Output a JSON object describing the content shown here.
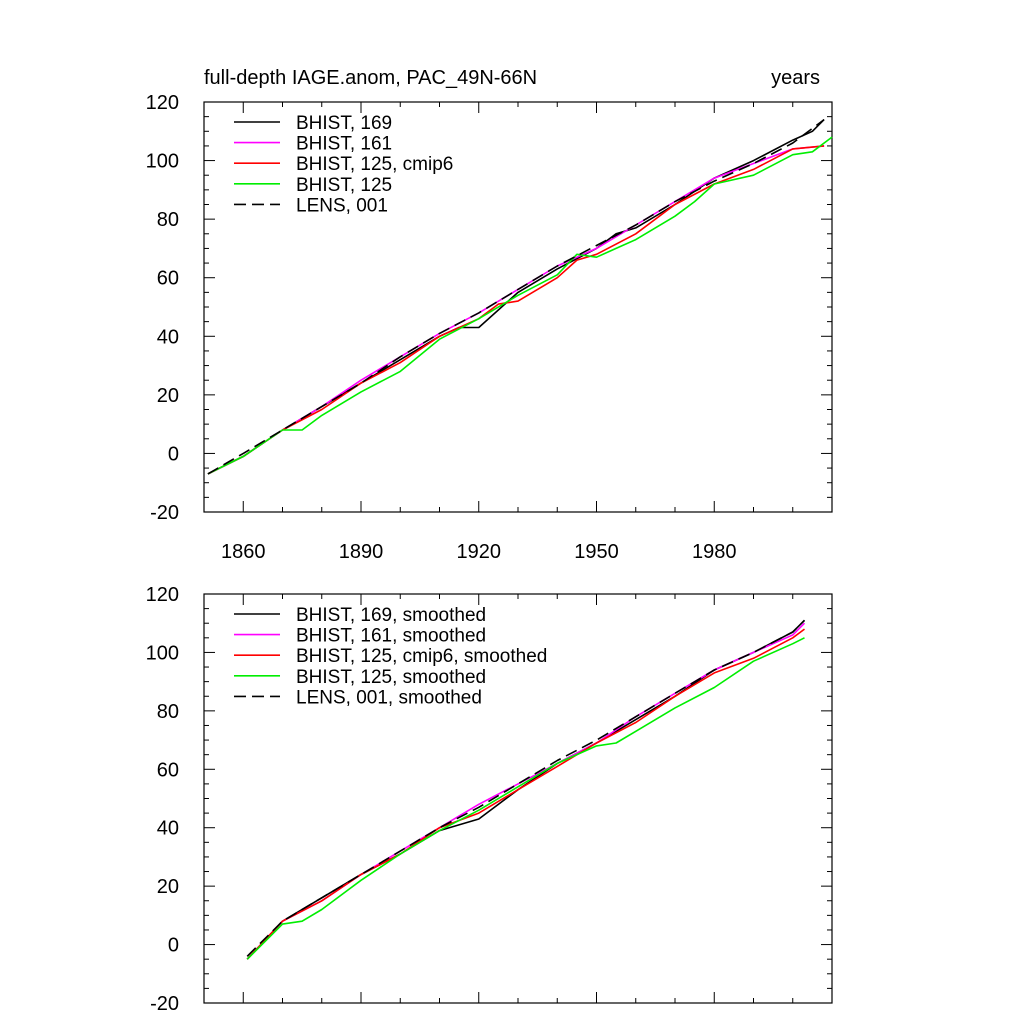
{
  "title_left": "full-depth IAGE.anom, PAC_49N-66N",
  "title_right": "years",
  "chart_data": [
    {
      "type": "line",
      "panel": "top",
      "xlim": [
        1850,
        2010
      ],
      "ylim": [
        -20,
        120
      ],
      "xticks": [
        1860,
        1890,
        1920,
        1950,
        1980
      ],
      "yticks": [
        -20,
        0,
        20,
        40,
        60,
        80,
        100,
        120
      ],
      "xlabel": "",
      "ylabel": "",
      "legend_position": "top-left",
      "series": [
        {
          "name": "BHIST, 169",
          "color": "#000000",
          "dash": "solid",
          "smoothed": false,
          "x": [
            1851,
            1860,
            1870,
            1880,
            1890,
            1900,
            1910,
            1915,
            1920,
            1930,
            1940,
            1950,
            1955,
            1960,
            1970,
            1980,
            1990,
            2000,
            2005,
            2008
          ],
          "y": [
            -7,
            -1,
            8,
            16,
            24,
            32,
            40,
            43,
            43,
            55,
            63,
            70,
            75,
            77,
            85,
            94,
            100,
            107,
            110,
            114
          ]
        },
        {
          "name": "BHIST, 161",
          "color": "#ff00ff",
          "dash": "solid",
          "smoothed": false,
          "x": [
            1851,
            1860,
            1870,
            1880,
            1890,
            1900,
            1910,
            1920,
            1930,
            1940,
            1950,
            1960,
            1970,
            1980,
            1990,
            2000,
            2008
          ],
          "y": [
            -7,
            -1,
            8,
            16,
            25,
            33,
            41,
            48,
            56,
            64,
            70,
            78,
            86,
            94,
            99,
            104,
            105
          ]
        },
        {
          "name": "BHIST, 125, cmip6",
          "color": "#ff0000",
          "dash": "solid",
          "smoothed": false,
          "x": [
            1851,
            1860,
            1870,
            1880,
            1890,
            1900,
            1910,
            1920,
            1925,
            1930,
            1940,
            1945,
            1950,
            1960,
            1970,
            1980,
            1990,
            2000,
            2008
          ],
          "y": [
            -7,
            -1,
            8,
            15,
            24,
            31,
            40,
            46,
            51,
            52,
            60,
            66,
            68,
            75,
            85,
            92,
            97,
            104,
            105
          ]
        },
        {
          "name": "BHIST, 125",
          "color": "#00ee00",
          "dash": "solid",
          "smoothed": false,
          "x": [
            1851,
            1860,
            1870,
            1875,
            1880,
            1890,
            1900,
            1910,
            1920,
            1930,
            1940,
            1945,
            1950,
            1955,
            1960,
            1970,
            1975,
            1980,
            1990,
            2000,
            2005,
            2010
          ],
          "y": [
            -7,
            -1,
            8,
            8,
            13,
            21,
            28,
            39,
            46,
            54,
            61,
            68,
            67,
            70,
            73,
            81,
            86,
            92,
            95,
            102,
            103,
            108
          ]
        },
        {
          "name": "LENS, 001",
          "color": "#000000",
          "dash": "dashed",
          "smoothed": false,
          "x": [
            1851,
            1860,
            1870,
            1880,
            1890,
            1900,
            1910,
            1920,
            1930,
            1940,
            1950,
            1960,
            1970,
            1980,
            1990,
            2000,
            2008
          ],
          "y": [
            -7,
            0,
            8,
            16,
            24,
            33,
            41,
            48,
            56,
            64,
            71,
            78,
            86,
            93,
            99,
            106,
            114
          ]
        }
      ]
    },
    {
      "type": "line",
      "panel": "bottom",
      "xlim": [
        1850,
        2010
      ],
      "ylim": [
        -20,
        120
      ],
      "xticks": [
        1860,
        1890,
        1920,
        1950,
        1980
      ],
      "yticks": [
        -20,
        0,
        20,
        40,
        60,
        80,
        100,
        120
      ],
      "xlabel": "",
      "ylabel": "",
      "legend_position": "top-left",
      "series": [
        {
          "name": "BHIST, 169, smoothed",
          "color": "#000000",
          "dash": "solid",
          "smoothed": true,
          "x": [
            1861,
            1870,
            1880,
            1890,
            1900,
            1910,
            1920,
            1930,
            1940,
            1950,
            1960,
            1970,
            1980,
            1990,
            2000,
            2003
          ],
          "y": [
            -5,
            8,
            16,
            24,
            31,
            39,
            43,
            53,
            62,
            69,
            77,
            85,
            94,
            100,
            107,
            111
          ]
        },
        {
          "name": "BHIST, 161, smoothed",
          "color": "#ff00ff",
          "dash": "solid",
          "smoothed": true,
          "x": [
            1861,
            1870,
            1880,
            1890,
            1900,
            1910,
            1920,
            1930,
            1940,
            1950,
            1960,
            1970,
            1980,
            1990,
            2000,
            2003
          ],
          "y": [
            -5,
            8,
            15,
            24,
            32,
            40,
            48,
            55,
            62,
            69,
            78,
            86,
            94,
            100,
            106,
            110
          ]
        },
        {
          "name": "BHIST, 125, cmip6, smoothed",
          "color": "#ff0000",
          "dash": "solid",
          "smoothed": true,
          "x": [
            1861,
            1870,
            1880,
            1890,
            1900,
            1910,
            1920,
            1930,
            1940,
            1950,
            1960,
            1970,
            1980,
            1990,
            2000,
            2003
          ],
          "y": [
            -5,
            8,
            15,
            24,
            31,
            40,
            45,
            53,
            61,
            69,
            76,
            85,
            93,
            98,
            105,
            108
          ]
        },
        {
          "name": "BHIST, 125, smoothed",
          "color": "#00ee00",
          "dash": "solid",
          "smoothed": true,
          "x": [
            1861,
            1870,
            1875,
            1880,
            1890,
            1900,
            1910,
            1920,
            1930,
            1940,
            1950,
            1955,
            1960,
            1970,
            1980,
            1990,
            2000,
            2003
          ],
          "y": [
            -5,
            7,
            8,
            12,
            22,
            31,
            39,
            46,
            54,
            62,
            68,
            69,
            73,
            81,
            88,
            97,
            103,
            105
          ]
        },
        {
          "name": "LENS, 001, smoothed",
          "color": "#000000",
          "dash": "dashed",
          "smoothed": true,
          "x": [
            1861,
            1870,
            1880,
            1890,
            1900,
            1910,
            1920,
            1930,
            1940,
            1950,
            1960,
            1970,
            1980,
            1990,
            2000,
            2003
          ],
          "y": [
            -4,
            8,
            16,
            24,
            32,
            40,
            47,
            55,
            63,
            70,
            78,
            86,
            94,
            100,
            107,
            111
          ]
        }
      ]
    }
  ]
}
